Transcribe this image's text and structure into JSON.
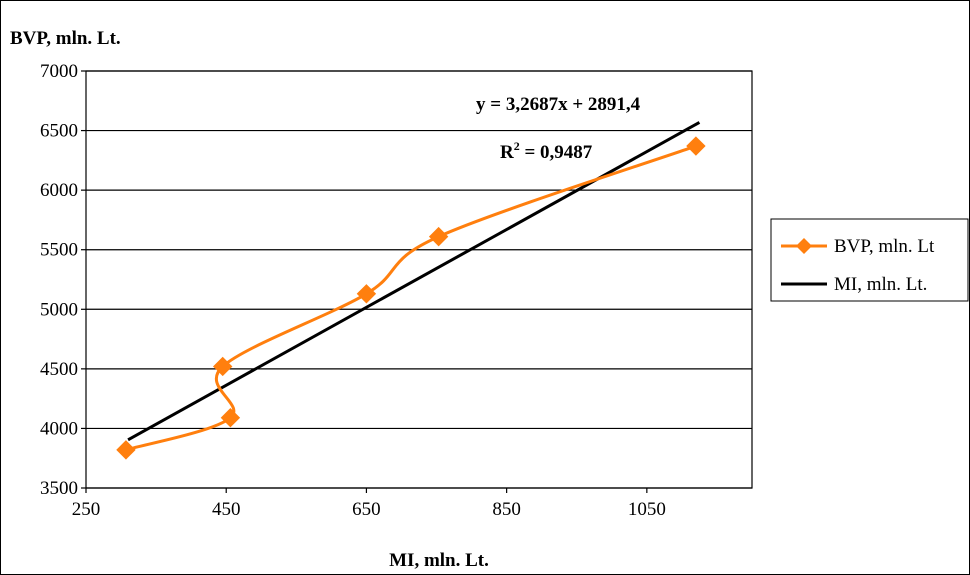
{
  "chart_data": {
    "type": "line",
    "xlabel": "MI, mln. Lt.",
    "ylabel": "BVP, mln. Lt.",
    "xlim": [
      250,
      1200
    ],
    "ylim": [
      3500,
      7000
    ],
    "xticks": [
      250,
      450,
      650,
      850,
      1050
    ],
    "yticks": [
      3500,
      4000,
      4500,
      5000,
      5500,
      6000,
      6500,
      7000
    ],
    "grid": "horizontal",
    "legend_position": "right",
    "series": [
      {
        "name": "BVP, mln. Lt",
        "color": "#FF7F0E",
        "marker": "diamond",
        "smooth": true,
        "x": [
          307,
          456,
          445,
          650,
          753,
          1120
        ],
        "y": [
          3820,
          4090,
          4520,
          5130,
          5610,
          6370
        ]
      },
      {
        "name": "MI, mln. Lt.",
        "color": "#000000",
        "kind": "trendline",
        "slope": 3.2687,
        "intercept": 2891.4,
        "x_range": [
          310,
          1125
        ]
      }
    ],
    "annotations": {
      "equation": "y = 3,2687x + 2891,4",
      "r2_prefix": "R",
      "r2_sup": "2",
      "r2_value": " = 0,9487"
    }
  }
}
